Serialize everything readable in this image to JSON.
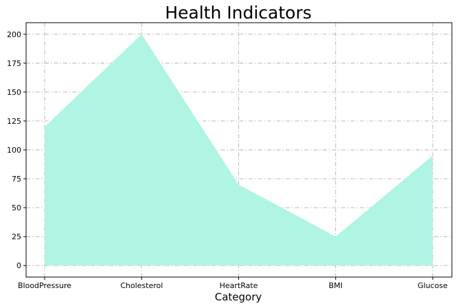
{
  "chart_data": {
    "type": "area",
    "title": "Health Indicators",
    "xlabel": "Category",
    "ylabel": "",
    "categories": [
      "BloodPressure",
      "Cholesterol",
      "HeartRate",
      "BMI",
      "Glucose"
    ],
    "series": [
      {
        "values": [
          120,
          200,
          70,
          25,
          95
        ],
        "color": "#b0f5e4"
      }
    ],
    "ylim": [
      -10,
      210
    ],
    "yticks": [
      0,
      25,
      50,
      75,
      100,
      125,
      150,
      175,
      200
    ],
    "ytick_labels": [
      "0",
      "25",
      "50",
      "75",
      "100",
      "125",
      "150",
      "175",
      "200"
    ],
    "grid": true,
    "legend": "none"
  }
}
